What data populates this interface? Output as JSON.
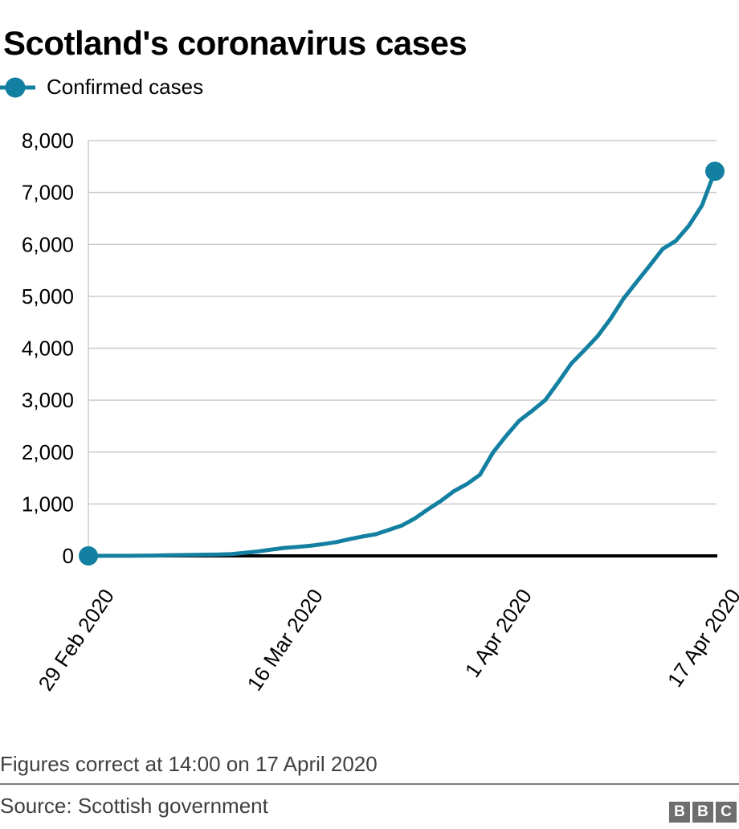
{
  "title": "Scotland's coronavirus cases",
  "legend": {
    "label": "Confirmed cases",
    "color": "#1380A1"
  },
  "footnote": "Figures correct at 14:00 on 17 April 2020",
  "source": "Source: Scottish government",
  "logo": {
    "letters": [
      "B",
      "B",
      "C"
    ]
  },
  "colors": {
    "accent": "#1380A1",
    "gridline": "#cbcbcb",
    "axis": "#000000",
    "footer_text": "#404040",
    "divider": "#7c7c7c",
    "logo_block": "#6e6e6e"
  },
  "chart_data": {
    "type": "line",
    "title": "Scotland's coronavirus cases",
    "xlabel": "",
    "ylabel": "",
    "ylim": [
      0,
      8000
    ],
    "grid": "horizontal",
    "legend_position": "top-left",
    "markers": "endpoints",
    "y_ticks": [
      0,
      1000,
      2000,
      3000,
      4000,
      5000,
      6000,
      7000,
      8000
    ],
    "x_ticks": [
      {
        "label": "29 Feb 2020",
        "day": 0
      },
      {
        "label": "16 Mar 2020",
        "day": 16
      },
      {
        "label": "1 Apr 2020",
        "day": 32
      },
      {
        "label": "17 Apr 2020",
        "day": 48
      }
    ],
    "dates": [
      "29 Feb",
      "1 Mar",
      "2 Mar",
      "3 Mar",
      "4 Mar",
      "5 Mar",
      "6 Mar",
      "7 Mar",
      "8 Mar",
      "9 Mar",
      "10 Mar",
      "11 Mar",
      "12 Mar",
      "13 Mar",
      "14 Mar",
      "15 Mar",
      "16 Mar",
      "17 Mar",
      "18 Mar",
      "19 Mar",
      "20 Mar",
      "21 Mar",
      "22 Mar",
      "23 Mar",
      "24 Mar",
      "25 Mar",
      "26 Mar",
      "27 Mar",
      "28 Mar",
      "29 Mar",
      "30 Mar",
      "31 Mar",
      "1 Apr",
      "2 Apr",
      "3 Apr",
      "4 Apr",
      "5 Apr",
      "6 Apr",
      "7 Apr",
      "8 Apr",
      "9 Apr",
      "10 Apr",
      "11 Apr",
      "12 Apr",
      "13 Apr",
      "14 Apr",
      "15 Apr",
      "16 Apr",
      "17 Apr"
    ],
    "series": [
      {
        "name": "Confirmed cases",
        "color": "#1380A1",
        "values": [
          0,
          1,
          1,
          1,
          3,
          6,
          11,
          16,
          18,
          23,
          27,
          36,
          60,
          85,
          121,
          153,
          171,
          195,
          227,
          266,
          322,
          373,
          416,
          499,
          584,
          719,
          894,
          1059,
          1245,
          1384,
          1563,
          1993,
          2310,
          2602,
          2795,
          3001,
          3345,
          3706,
          3961,
          4229,
          4565,
          4957,
          5275,
          5590,
          5912,
          6067,
          6358,
          6748,
          7409
        ]
      }
    ]
  }
}
